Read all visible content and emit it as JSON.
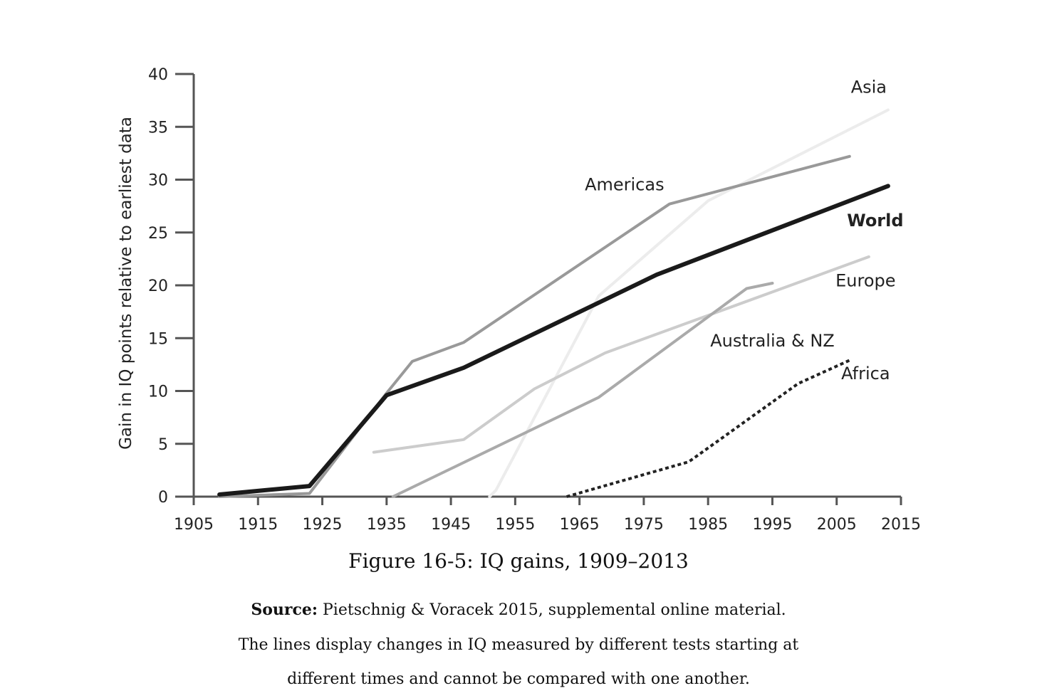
{
  "chart_data": {
    "type": "line",
    "ylabel": "Gain in  IQ points relative to earliest data",
    "xlabel": "",
    "xlim": [
      1905,
      2015
    ],
    "ylim": [
      0,
      40
    ],
    "x_ticks": [
      1905,
      1915,
      1925,
      1935,
      1945,
      1955,
      1965,
      1975,
      1985,
      1995,
      2005,
      2015
    ],
    "y_ticks": [
      0,
      5,
      10,
      15,
      20,
      25,
      30,
      35,
      40
    ],
    "grid": false,
    "series": [
      {
        "name": "Asia",
        "color": "#ececec",
        "style": "solid",
        "points": [
          [
            1951,
            0
          ],
          [
            1952,
            0.6
          ],
          [
            1968,
            19
          ],
          [
            1985,
            28
          ],
          [
            2013,
            36.6
          ]
        ]
      },
      {
        "name": "Americas",
        "color": "#999999",
        "style": "solid",
        "points": [
          [
            1909,
            0
          ],
          [
            1923,
            0.3
          ],
          [
            1935,
            9.8
          ],
          [
            1939,
            12.8
          ],
          [
            1947,
            14.6
          ],
          [
            1979,
            27.7
          ],
          [
            2007,
            32.2
          ]
        ]
      },
      {
        "name": "Europe",
        "color": "#cccccc",
        "style": "solid",
        "points": [
          [
            1933,
            4.2
          ],
          [
            1947,
            5.4
          ],
          [
            1958,
            10.2
          ],
          [
            1969,
            13.6
          ],
          [
            2010,
            22.7
          ]
        ]
      },
      {
        "name": "Australia & NZ",
        "color": "#aaaaaa",
        "style": "solid",
        "points": [
          [
            1936,
            0
          ],
          [
            1968,
            9.4
          ],
          [
            1991,
            19.7
          ],
          [
            1995,
            20.2
          ]
        ]
      },
      {
        "name": "Africa",
        "color": "#222222",
        "style": "dotted",
        "points": [
          [
            1963,
            0
          ],
          [
            1982,
            3.3
          ],
          [
            1999,
            10.7
          ],
          [
            2007,
            12.9
          ]
        ]
      },
      {
        "name": "World",
        "color": "#1a1a1a",
        "style": "bold",
        "points": [
          [
            1909,
            0.2
          ],
          [
            1923,
            1.0
          ],
          [
            1935,
            9.6
          ],
          [
            1947,
            12.2
          ],
          [
            1977,
            21
          ],
          [
            2013,
            29.4
          ]
        ]
      }
    ]
  },
  "caption": {
    "title": "Figure 16-5: IQ gains, 1909–2013",
    "source_label": "Source:",
    "source_text": " Pietschnig & Voracek 2015, supplemental online material.",
    "note_line_1": "The lines display changes in IQ measured by different tests starting at",
    "note_line_2": "different times and cannot be compared with one another."
  }
}
